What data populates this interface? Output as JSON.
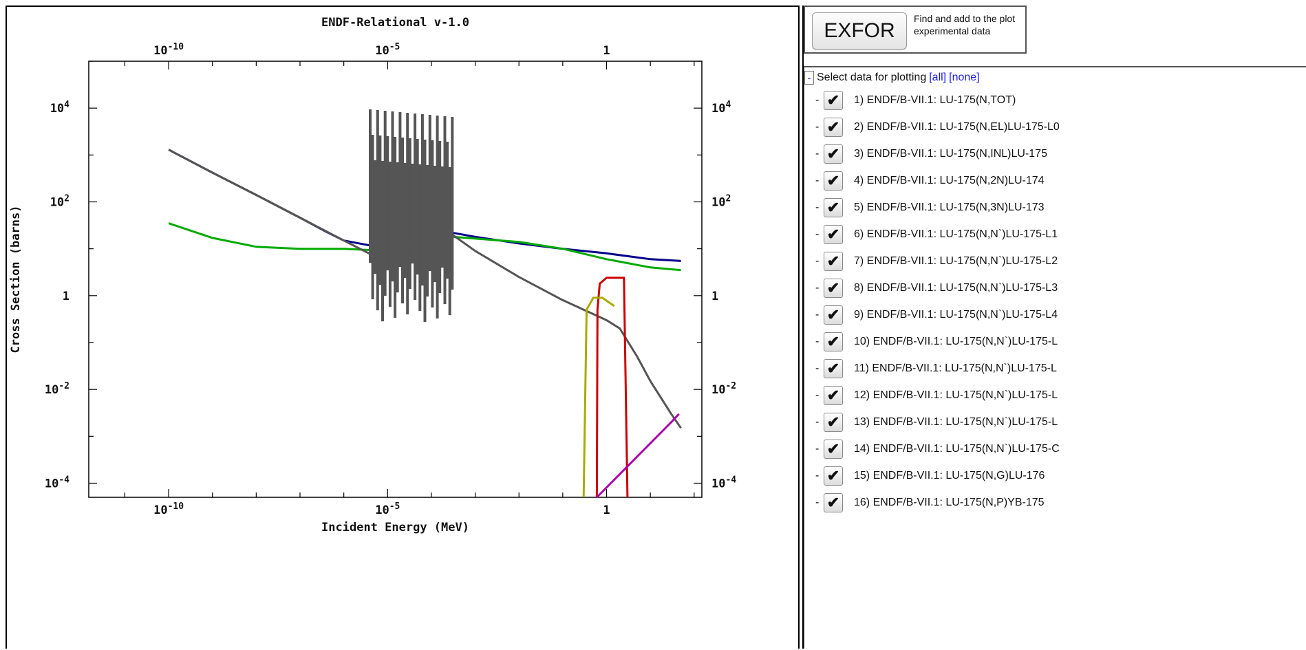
{
  "plot": {
    "title": "ENDF-Relational v-1.0",
    "xlabel": "Incident Energy (MeV)",
    "ylabel": "Cross Section (barns)",
    "x_tick_labels": [
      {
        "base": "10",
        "exp": "-10",
        "value": 1e-10
      },
      {
        "base": "10",
        "exp": "-5",
        "value": 1e-05
      },
      {
        "base": "1",
        "exp": "",
        "value": 1
      }
    ],
    "y_tick_labels": [
      {
        "base": "10",
        "exp": "4",
        "value": 10000
      },
      {
        "base": "10",
        "exp": "2",
        "value": 100
      },
      {
        "base": "1",
        "exp": "",
        "value": 1
      },
      {
        "base": "10",
        "exp": "-2",
        "value": 0.01
      },
      {
        "base": "10",
        "exp": "-4",
        "value": 0.0001
      }
    ]
  },
  "chart_data": {
    "type": "line",
    "title": "ENDF-Relational v-1.0",
    "xlabel": "Incident Energy (MeV)",
    "ylabel": "Cross Section (barns)",
    "x_scale": "log",
    "y_scale": "log",
    "xlim": [
      1.5e-12,
      150
    ],
    "ylim": [
      5e-05,
      100000
    ],
    "grid": false,
    "series": [
      {
        "color": "#00008b",
        "points": [
          [
            1e-10,
            1300
          ],
          [
            1e-09,
            420
          ],
          [
            1e-08,
            140
          ],
          [
            1e-07,
            46
          ],
          [
            4e-07,
            23
          ],
          [
            1e-06,
            15
          ],
          [
            1e-05,
            10
          ],
          [
            0.0003,
            22
          ],
          [
            0.001,
            18
          ],
          [
            0.01,
            13
          ],
          [
            0.1,
            10
          ],
          [
            1,
            8
          ],
          [
            10,
            6
          ],
          [
            50,
            5.5
          ]
        ]
      },
      {
        "color": "#00aa00",
        "points": [
          [
            1e-10,
            35
          ],
          [
            1e-09,
            17
          ],
          [
            1e-08,
            11
          ],
          [
            1e-07,
            10
          ],
          [
            1e-06,
            10
          ],
          [
            1e-05,
            9
          ],
          [
            0.0003,
            18
          ],
          [
            0.01,
            14
          ],
          [
            0.1,
            10
          ],
          [
            1,
            6
          ],
          [
            10,
            4
          ],
          [
            50,
            3.5
          ]
        ]
      },
      {
        "color": "#555555",
        "points": [
          [
            1e-10,
            1300
          ],
          [
            1e-09,
            420
          ],
          [
            1e-08,
            140
          ],
          [
            1e-07,
            46
          ],
          [
            1e-06,
            15
          ],
          [
            1e-05,
            5
          ],
          [
            0.0003,
            20
          ],
          [
            0.001,
            9
          ],
          [
            0.01,
            2.5
          ],
          [
            0.1,
            0.8
          ],
          [
            1,
            0.3
          ],
          [
            2,
            0.2
          ],
          [
            5,
            0.05
          ],
          [
            10,
            0.015
          ],
          [
            30,
            0.003
          ],
          [
            50,
            0.0015
          ]
        ]
      },
      {
        "color": "#cc0000",
        "points": [
          [
            0.6,
            5e-05
          ],
          [
            0.62,
            0.5
          ],
          [
            0.7,
            1.8
          ],
          [
            1,
            2.4
          ],
          [
            2.5,
            2.4
          ],
          [
            3,
            5e-05
          ]
        ]
      },
      {
        "color": "#aaaa00",
        "points": [
          [
            0.3,
            5e-05
          ],
          [
            0.35,
            0.5
          ],
          [
            0.5,
            0.9
          ],
          [
            0.8,
            0.9
          ],
          [
            1.5,
            0.6
          ]
        ]
      },
      {
        "color": "#aa00aa",
        "points": [
          [
            0.6,
            5e-05
          ],
          [
            30,
            0.002
          ],
          [
            45,
            0.003
          ]
        ]
      }
    ]
  },
  "sidebar": {
    "exfor_label": "EXFOR",
    "exfor_desc": "Find and add to the plot experimental data",
    "collapse_symbol": "-",
    "select_label": "Select data for plotting",
    "all_link": "[all]",
    "none_link": "[none]",
    "check_glyph": "✔",
    "row_dash": "-",
    "items": [
      "1) ENDF/B-VII.1: LU-175(N,TOT)",
      "2) ENDF/B-VII.1: LU-175(N,EL)LU-175-L0",
      "3) ENDF/B-VII.1: LU-175(N,INL)LU-175",
      "4) ENDF/B-VII.1: LU-175(N,2N)LU-174",
      "5) ENDF/B-VII.1: LU-175(N,3N)LU-173",
      "6) ENDF/B-VII.1: LU-175(N,N`)LU-175-L1",
      "7) ENDF/B-VII.1: LU-175(N,N`)LU-175-L2",
      "8) ENDF/B-VII.1: LU-175(N,N`)LU-175-L3",
      "9) ENDF/B-VII.1: LU-175(N,N`)LU-175-L4",
      "10) ENDF/B-VII.1: LU-175(N,N`)LU-175-L",
      "11) ENDF/B-VII.1: LU-175(N,N`)LU-175-L",
      "12) ENDF/B-VII.1: LU-175(N,N`)LU-175-L",
      "13) ENDF/B-VII.1: LU-175(N,N`)LU-175-L",
      "14) ENDF/B-VII.1: LU-175(N,N`)LU-175-C",
      "15) ENDF/B-VII.1: LU-175(N,G)LU-176",
      "16) ENDF/B-VII.1: LU-175(N,P)YB-175"
    ]
  }
}
